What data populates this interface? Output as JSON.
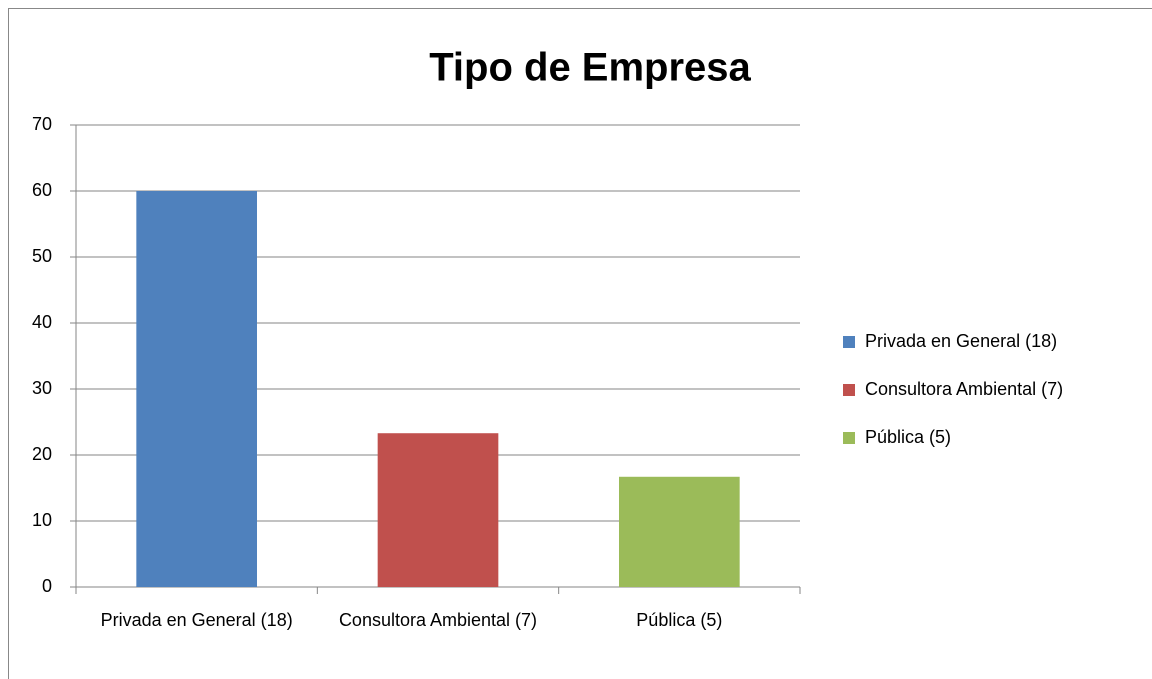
{
  "chart_data": {
    "type": "bar",
    "title": "Tipo de Empresa",
    "categories": [
      "Privada en General (18)",
      "Consultora Ambiental (7)",
      "Pública (5)"
    ],
    "values": [
      60,
      23.3,
      16.7
    ],
    "colors": [
      "#4f81bd",
      "#c0504d",
      "#9bbb59"
    ],
    "ylim": [
      0,
      70
    ],
    "yticks": [
      0,
      10,
      20,
      30,
      40,
      50,
      60,
      70
    ],
    "grid": true,
    "legend": "right"
  }
}
